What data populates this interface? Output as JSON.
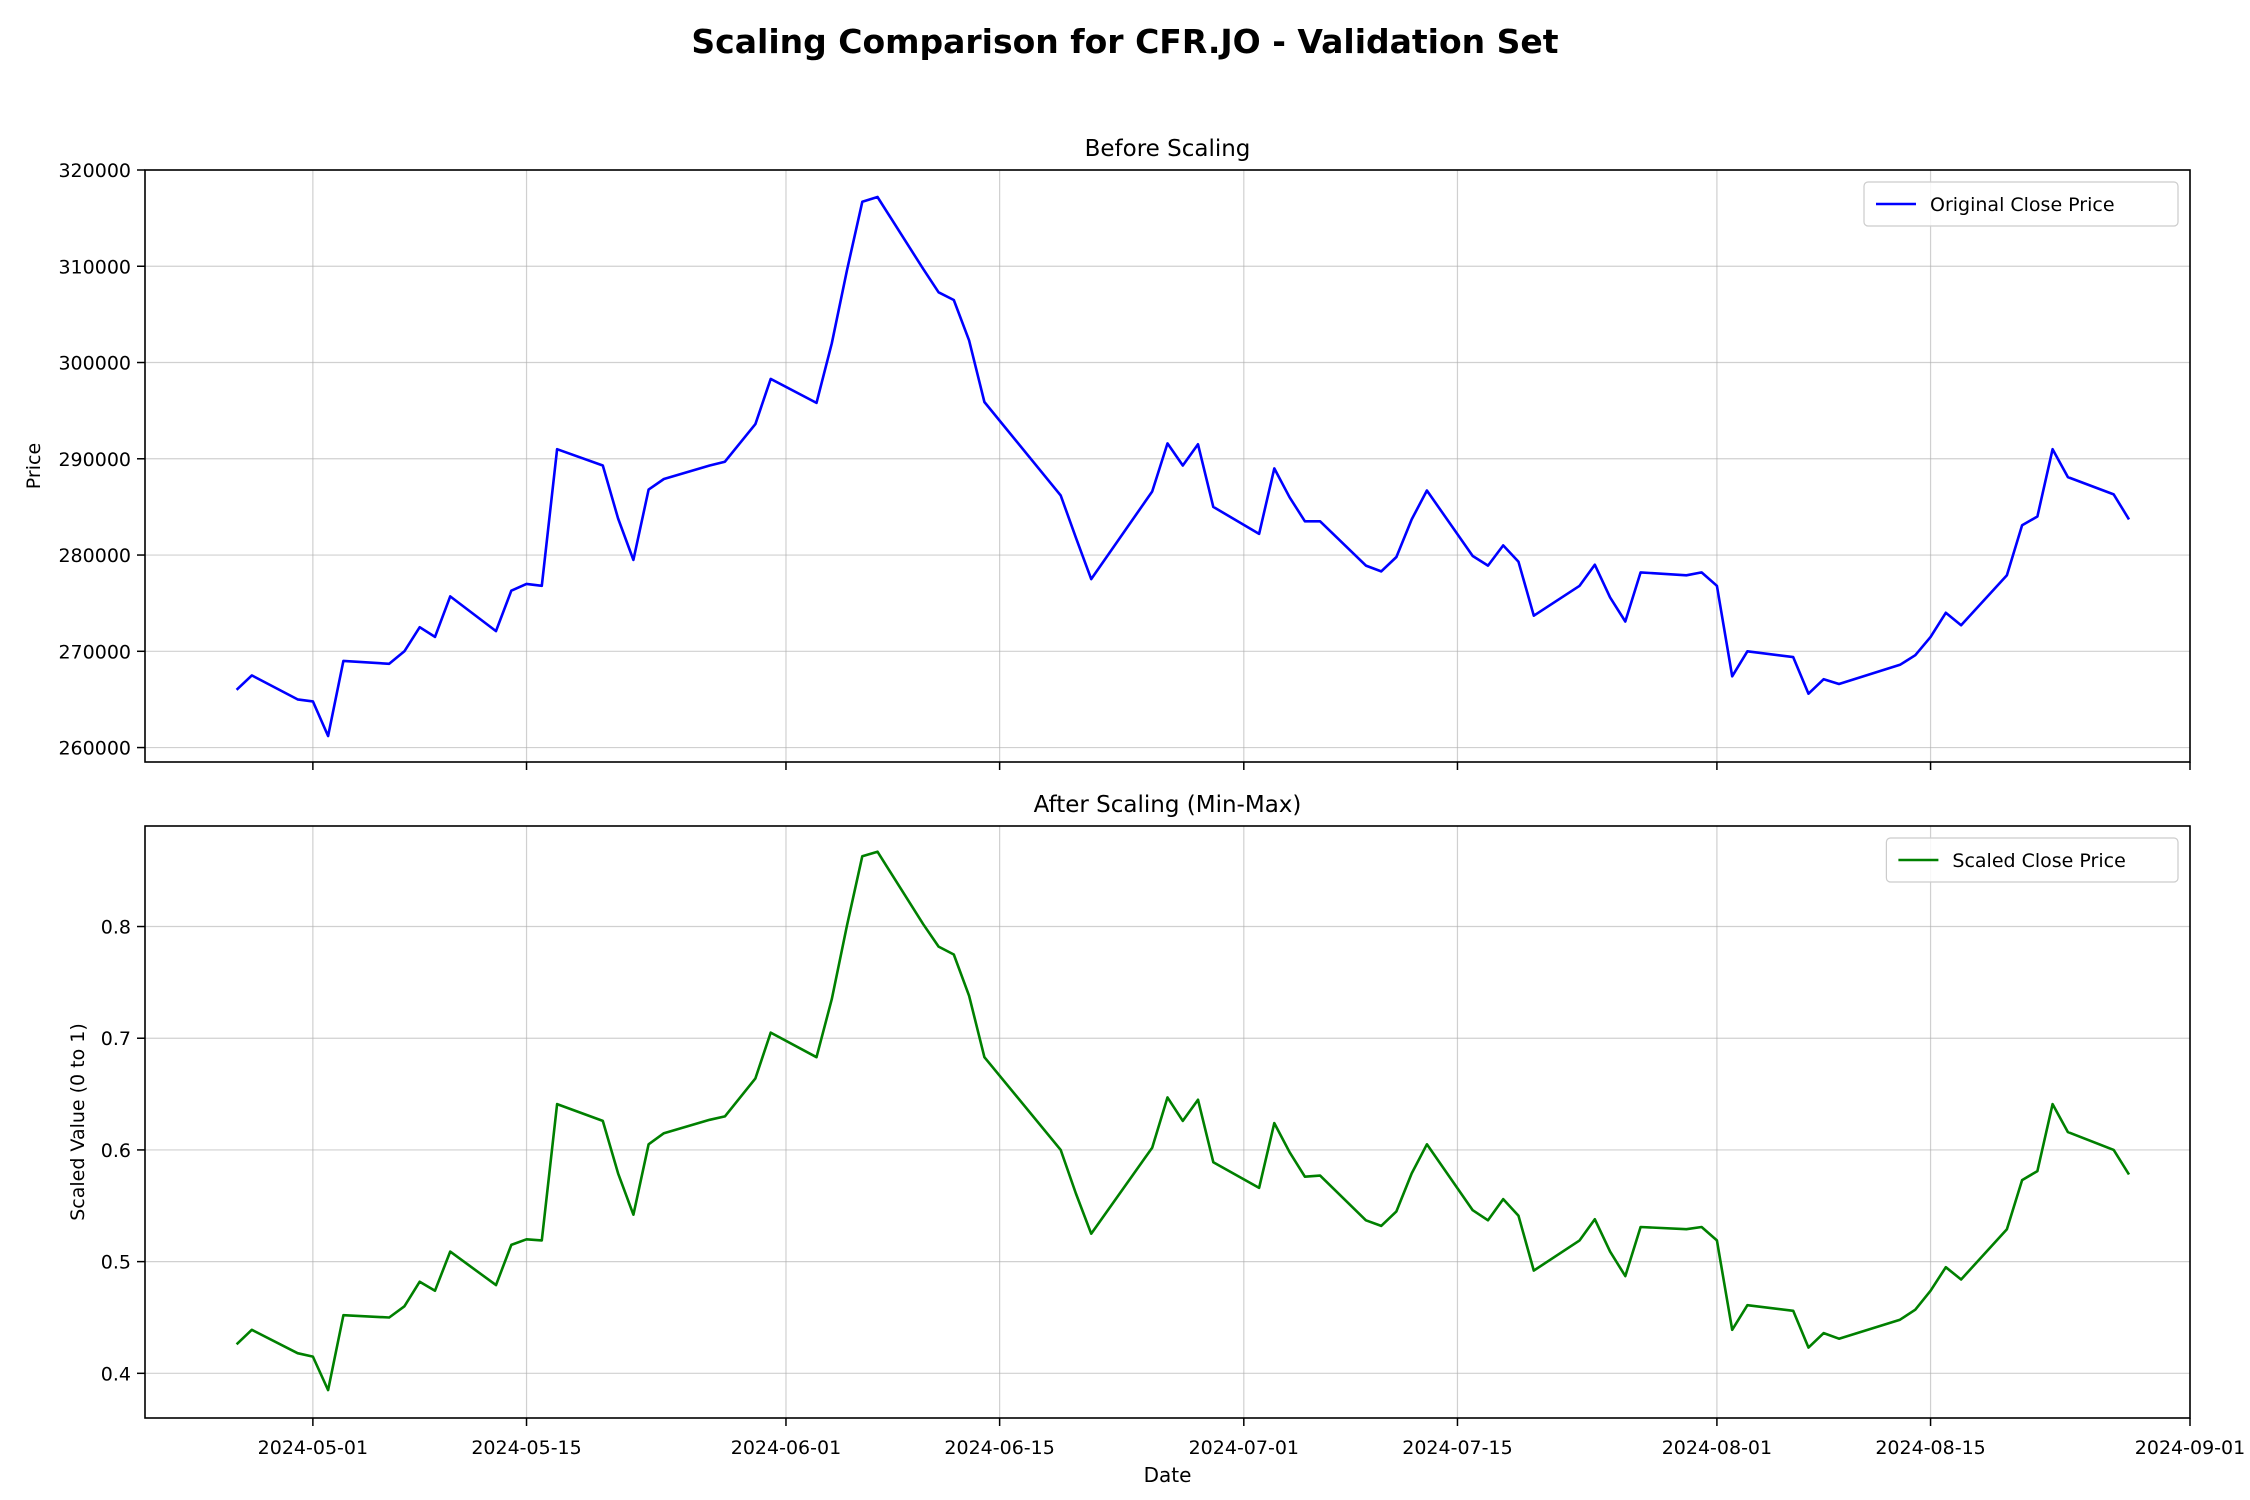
{
  "suptitle": "Scaling Comparison for CFR.JO - Validation Set",
  "chart_data": [
    {
      "type": "line",
      "title": "Before Scaling",
      "xlabel": "",
      "ylabel": "Price",
      "xlim": [
        "2024-04-20",
        "2024-09-01"
      ],
      "ylim": [
        258500,
        320000
      ],
      "yticks": [
        260000,
        270000,
        280000,
        290000,
        300000,
        310000,
        320000
      ],
      "xticks": [],
      "grid": true,
      "legend": "top-right",
      "series": [
        {
          "name": "Original Close Price",
          "color": "#0000ff",
          "points": [
            [
              "2024-04-26",
              266000
            ],
            [
              "2024-04-27",
              267500
            ],
            [
              "2024-04-30",
              265000
            ],
            [
              "2024-05-01",
              264800
            ],
            [
              "2024-05-02",
              261200
            ],
            [
              "2024-05-03",
              269000
            ],
            [
              "2024-05-06",
              268700
            ],
            [
              "2024-05-07",
              270000
            ],
            [
              "2024-05-08",
              272500
            ],
            [
              "2024-05-09",
              271500
            ],
            [
              "2024-05-10",
              275700
            ],
            [
              "2024-05-13",
              272100
            ],
            [
              "2024-05-14",
              276300
            ],
            [
              "2024-05-15",
              277000
            ],
            [
              "2024-05-16",
              276800
            ],
            [
              "2024-05-17",
              291000
            ],
            [
              "2024-05-20",
              289300
            ],
            [
              "2024-05-21",
              283800
            ],
            [
              "2024-05-22",
              279500
            ],
            [
              "2024-05-23",
              286800
            ],
            [
              "2024-05-24",
              287900
            ],
            [
              "2024-05-27",
              289300
            ],
            [
              "2024-05-28",
              289700
            ],
            [
              "2024-05-30",
              293600
            ],
            [
              "2024-05-31",
              298300
            ],
            [
              "2024-06-03",
              295800
            ],
            [
              "2024-06-04",
              302000
            ],
            [
              "2024-06-05",
              309600
            ],
            [
              "2024-06-06",
              316700
            ],
            [
              "2024-06-07",
              317200
            ],
            [
              "2024-06-10",
              309700
            ],
            [
              "2024-06-11",
              307300
            ],
            [
              "2024-06-12",
              306500
            ],
            [
              "2024-06-13",
              302300
            ],
            [
              "2024-06-14",
              295900
            ],
            [
              "2024-06-19",
              286200
            ],
            [
              "2024-06-20",
              281800
            ],
            [
              "2024-06-21",
              277500
            ],
            [
              "2024-06-25",
              286600
            ],
            [
              "2024-06-26",
              291600
            ],
            [
              "2024-06-27",
              289300
            ],
            [
              "2024-06-28",
              291500
            ],
            [
              "2024-06-29",
              285000
            ],
            [
              "2024-07-02",
              282200
            ],
            [
              "2024-07-03",
              289000
            ],
            [
              "2024-07-04",
              286000
            ],
            [
              "2024-07-05",
              283500
            ],
            [
              "2024-07-06",
              283500
            ],
            [
              "2024-07-09",
              278900
            ],
            [
              "2024-07-10",
              278300
            ],
            [
              "2024-07-11",
              279800
            ],
            [
              "2024-07-12",
              283700
            ],
            [
              "2024-07-13",
              286700
            ],
            [
              "2024-07-16",
              279900
            ],
            [
              "2024-07-17",
              278900
            ],
            [
              "2024-07-18",
              281000
            ],
            [
              "2024-07-19",
              279300
            ],
            [
              "2024-07-20",
              273700
            ],
            [
              "2024-07-23",
              276800
            ],
            [
              "2024-07-24",
              279000
            ],
            [
              "2024-07-25",
              275600
            ],
            [
              "2024-07-26",
              273100
            ],
            [
              "2024-07-27",
              278200
            ],
            [
              "2024-07-30",
              277900
            ],
            [
              "2024-07-31",
              278200
            ],
            [
              "2024-08-01",
              276800
            ],
            [
              "2024-08-02",
              267400
            ],
            [
              "2024-08-03",
              270000
            ],
            [
              "2024-08-06",
              269400
            ],
            [
              "2024-08-07",
              265600
            ],
            [
              "2024-08-08",
              267100
            ],
            [
              "2024-08-09",
              266600
            ],
            [
              "2024-08-13",
              268600
            ],
            [
              "2024-08-14",
              269600
            ],
            [
              "2024-08-15",
              271500
            ],
            [
              "2024-08-16",
              274000
            ],
            [
              "2024-08-17",
              272700
            ],
            [
              "2024-08-20",
              277900
            ],
            [
              "2024-08-21",
              283100
            ],
            [
              "2024-08-22",
              284000
            ],
            [
              "2024-08-23",
              291000
            ],
            [
              "2024-08-24",
              288100
            ],
            [
              "2024-08-27",
              286300
            ],
            [
              "2024-08-28",
              283700
            ]
          ]
        }
      ]
    },
    {
      "type": "line",
      "title": "After Scaling (Min-Max)",
      "xlabel": "Date",
      "ylabel": "Scaled Value (0 to 1)",
      "xlim": [
        "2024-04-20",
        "2024-09-01"
      ],
      "ylim": [
        0.36,
        0.89
      ],
      "yticks": [
        0.4,
        0.5,
        0.6,
        0.7,
        0.8
      ],
      "xticks": [
        "2024-05-01",
        "2024-05-15",
        "2024-06-01",
        "2024-06-15",
        "2024-07-01",
        "2024-07-15",
        "2024-08-01",
        "2024-08-15",
        "2024-09-01"
      ],
      "grid": true,
      "legend": "top-right",
      "series": [
        {
          "name": "Scaled Close Price",
          "color": "#008000",
          "points": [
            [
              "2024-04-26",
              0.426
            ],
            [
              "2024-04-27",
              0.439
            ],
            [
              "2024-04-30",
              0.418
            ],
            [
              "2024-05-01",
              0.415
            ],
            [
              "2024-05-02",
              0.385
            ],
            [
              "2024-05-03",
              0.452
            ],
            [
              "2024-05-06",
              0.45
            ],
            [
              "2024-05-07",
              0.46
            ],
            [
              "2024-05-08",
              0.482
            ],
            [
              "2024-05-09",
              0.474
            ],
            [
              "2024-05-10",
              0.509
            ],
            [
              "2024-05-13",
              0.479
            ],
            [
              "2024-05-14",
              0.515
            ],
            [
              "2024-05-15",
              0.52
            ],
            [
              "2024-05-16",
              0.519
            ],
            [
              "2024-05-17",
              0.641
            ],
            [
              "2024-05-20",
              0.626
            ],
            [
              "2024-05-21",
              0.579
            ],
            [
              "2024-05-22",
              0.542
            ],
            [
              "2024-05-23",
              0.605
            ],
            [
              "2024-05-24",
              0.615
            ],
            [
              "2024-05-27",
              0.627
            ],
            [
              "2024-05-28",
              0.63
            ],
            [
              "2024-05-30",
              0.664
            ],
            [
              "2024-05-31",
              0.705
            ],
            [
              "2024-06-03",
              0.683
            ],
            [
              "2024-06-04",
              0.735
            ],
            [
              "2024-06-05",
              0.801
            ],
            [
              "2024-06-06",
              0.863
            ],
            [
              "2024-06-07",
              0.867
            ],
            [
              "2024-06-10",
              0.802
            ],
            [
              "2024-06-11",
              0.782
            ],
            [
              "2024-06-12",
              0.775
            ],
            [
              "2024-06-13",
              0.738
            ],
            [
              "2024-06-14",
              0.683
            ],
            [
              "2024-06-19",
              0.6
            ],
            [
              "2024-06-20",
              0.561
            ],
            [
              "2024-06-21",
              0.525
            ],
            [
              "2024-06-25",
              0.602
            ],
            [
              "2024-06-26",
              0.647
            ],
            [
              "2024-06-27",
              0.626
            ],
            [
              "2024-06-28",
              0.645
            ],
            [
              "2024-06-29",
              0.589
            ],
            [
              "2024-07-02",
              0.566
            ],
            [
              "2024-07-03",
              0.624
            ],
            [
              "2024-07-04",
              0.598
            ],
            [
              "2024-07-05",
              0.576
            ],
            [
              "2024-07-06",
              0.577
            ],
            [
              "2024-07-09",
              0.537
            ],
            [
              "2024-07-10",
              0.532
            ],
            [
              "2024-07-11",
              0.545
            ],
            [
              "2024-07-12",
              0.579
            ],
            [
              "2024-07-13",
              0.605
            ],
            [
              "2024-07-16",
              0.546
            ],
            [
              "2024-07-17",
              0.537
            ],
            [
              "2024-07-18",
              0.556
            ],
            [
              "2024-07-19",
              0.541
            ],
            [
              "2024-07-20",
              0.492
            ],
            [
              "2024-07-23",
              0.519
            ],
            [
              "2024-07-24",
              0.538
            ],
            [
              "2024-07-25",
              0.509
            ],
            [
              "2024-07-26",
              0.487
            ],
            [
              "2024-07-27",
              0.531
            ],
            [
              "2024-07-30",
              0.529
            ],
            [
              "2024-07-31",
              0.531
            ],
            [
              "2024-08-01",
              0.519
            ],
            [
              "2024-08-02",
              0.439
            ],
            [
              "2024-08-03",
              0.461
            ],
            [
              "2024-08-06",
              0.456
            ],
            [
              "2024-08-07",
              0.423
            ],
            [
              "2024-08-08",
              0.436
            ],
            [
              "2024-08-09",
              0.431
            ],
            [
              "2024-08-13",
              0.448
            ],
            [
              "2024-08-14",
              0.457
            ],
            [
              "2024-08-15",
              0.474
            ],
            [
              "2024-08-16",
              0.495
            ],
            [
              "2024-08-17",
              0.484
            ],
            [
              "2024-08-20",
              0.529
            ],
            [
              "2024-08-21",
              0.573
            ],
            [
              "2024-08-22",
              0.581
            ],
            [
              "2024-08-23",
              0.641
            ],
            [
              "2024-08-24",
              0.616
            ],
            [
              "2024-08-27",
              0.6
            ],
            [
              "2024-08-28",
              0.578
            ]
          ]
        }
      ]
    }
  ]
}
